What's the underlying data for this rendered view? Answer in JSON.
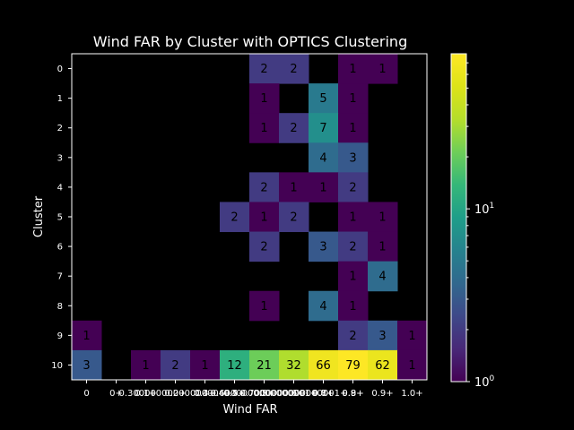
{
  "chart_data": {
    "type": "heatmap",
    "title": "Wind FAR by Cluster with OPTICS Clustering",
    "xlabel": "Wind FAR",
    "ylabel": "Cluster",
    "x_tick_labels": [
      "0",
      "0+",
      "0.1+",
      "0.2+",
      "0.3+",
      "0.4+",
      "0.5+",
      "0.6+",
      "0.7+",
      "0.8+",
      "0.9+",
      "1.0+"
    ],
    "x_tick_label_note": "0.1+ ... 0.7+ labels are overprinted with long float repr strings in the original (e.g. 0.30000000000000004+, 0.6000000000000001+, 0.7000000000000001+)",
    "x_tick_overprint": [
      "0.30000000000000004+",
      "0.4+",
      "0.5+",
      "0.6000000000000001+",
      "0.7000000000000001+",
      "0.8+",
      "0.9+"
    ],
    "y_tick_labels": [
      "0",
      "1",
      "2",
      "3",
      "4",
      "5",
      "6",
      "7",
      "8",
      "9",
      "10"
    ],
    "matrix": [
      [
        null,
        null,
        null,
        null,
        null,
        null,
        2,
        2,
        null,
        1,
        1,
        null
      ],
      [
        null,
        null,
        null,
        null,
        null,
        null,
        1,
        null,
        5,
        1,
        null,
        null
      ],
      [
        null,
        null,
        null,
        null,
        null,
        null,
        1,
        2,
        7,
        1,
        null,
        null
      ],
      [
        null,
        null,
        null,
        null,
        null,
        null,
        null,
        null,
        4,
        3,
        null,
        null
      ],
      [
        null,
        null,
        null,
        null,
        null,
        null,
        2,
        1,
        1,
        2,
        null,
        null
      ],
      [
        null,
        null,
        null,
        null,
        null,
        2,
        1,
        2,
        null,
        1,
        1,
        null
      ],
      [
        null,
        null,
        null,
        null,
        null,
        null,
        2,
        null,
        3,
        2,
        1,
        null
      ],
      [
        null,
        null,
        null,
        null,
        null,
        null,
        null,
        null,
        null,
        1,
        4,
        null
      ],
      [
        null,
        null,
        null,
        null,
        null,
        null,
        1,
        null,
        4,
        1,
        null,
        null
      ],
      [
        1,
        null,
        null,
        null,
        null,
        null,
        null,
        null,
        null,
        2,
        3,
        1
      ],
      [
        3,
        null,
        1,
        2,
        1,
        12,
        21,
        32,
        66,
        79,
        62,
        1
      ]
    ],
    "color_scale": "log",
    "colormap": "viridis",
    "vmin": 1,
    "vmax": 79,
    "colorbar_ticks": [
      {
        "value": 1,
        "label": "10",
        "exp": "0"
      },
      {
        "value": 10,
        "label": "10",
        "exp": "1"
      }
    ],
    "missing_color": "#000000",
    "grid": false
  }
}
